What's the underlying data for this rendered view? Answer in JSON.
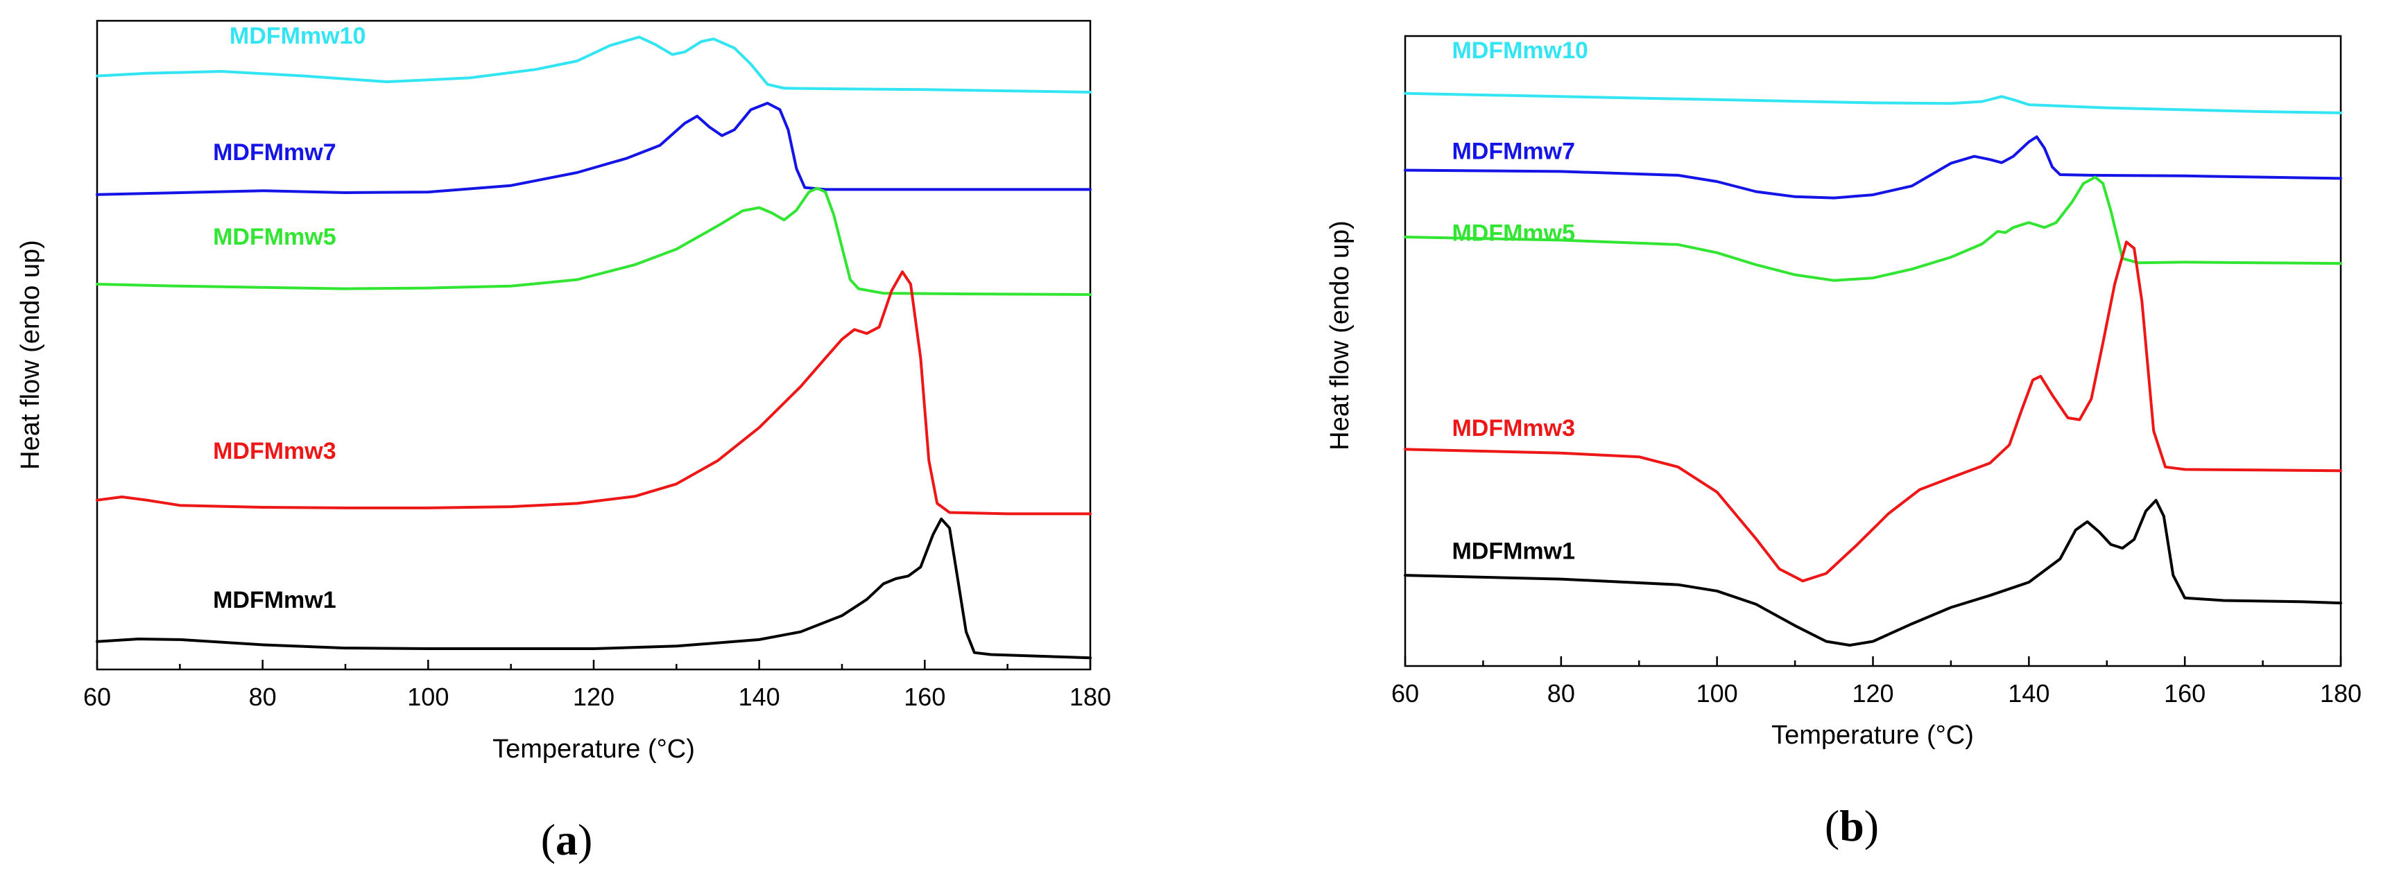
{
  "chart_data": [
    {
      "id": "a",
      "type": "line",
      "panel_label": {
        "open": "(",
        "letter": "a",
        "close": ")"
      },
      "xlabel": "Temperature (°C)",
      "ylabel": "Heat flow (endo up)",
      "xlim": [
        60,
        180
      ],
      "ylim": [
        0,
        100
      ],
      "xticks": [
        60,
        80,
        100,
        120,
        140,
        160,
        180
      ],
      "y_ticks_shown": false,
      "y_units": "arbitrary (stacked, offset)",
      "series": [
        {
          "name": "MDFMmw10",
          "color": "#33e5f2",
          "label_at": [
            76,
            96.5
          ],
          "points": [
            [
              60,
              91.5
            ],
            [
              66,
              91.9
            ],
            [
              75,
              92.2
            ],
            [
              85,
              91.5
            ],
            [
              95,
              90.6
            ],
            [
              105,
              91.2
            ],
            [
              113,
              92.5
            ],
            [
              118,
              93.8
            ],
            [
              122,
              96.2
            ],
            [
              125.5,
              97.5
            ],
            [
              127.5,
              96.3
            ],
            [
              129.5,
              94.8
            ],
            [
              131,
              95.2
            ],
            [
              133,
              96.8
            ],
            [
              134.5,
              97.2
            ],
            [
              137,
              95.8
            ],
            [
              139,
              93.3
            ],
            [
              141,
              90.2
            ],
            [
              143,
              89.6
            ],
            [
              150,
              89.5
            ],
            [
              160,
              89.4
            ],
            [
              170,
              89.2
            ],
            [
              180,
              89.0
            ]
          ]
        },
        {
          "name": "MDFMmw7",
          "color": "#1414e6",
          "label_at": [
            74,
            78.5
          ],
          "points": [
            [
              60,
              73.2
            ],
            [
              70,
              73.5
            ],
            [
              80,
              73.8
            ],
            [
              90,
              73.5
            ],
            [
              100,
              73.6
            ],
            [
              110,
              74.6
            ],
            [
              118,
              76.6
            ],
            [
              124,
              78.8
            ],
            [
              128,
              80.8
            ],
            [
              131,
              84.2
            ],
            [
              132.5,
              85.3
            ],
            [
              134,
              83.6
            ],
            [
              135.5,
              82.3
            ],
            [
              137,
              83.2
            ],
            [
              139,
              86.3
            ],
            [
              141,
              87.3
            ],
            [
              142.5,
              86.3
            ],
            [
              143.5,
              83.2
            ],
            [
              144.5,
              77.2
            ],
            [
              145.5,
              74.3
            ],
            [
              148,
              74.0
            ],
            [
              160,
              74.0
            ],
            [
              180,
              74.0
            ]
          ]
        },
        {
          "name": "MDFMmw5",
          "color": "#33e533",
          "label_at": [
            74,
            65.5
          ],
          "points": [
            [
              60,
              59.4
            ],
            [
              70,
              59.1
            ],
            [
              80,
              58.9
            ],
            [
              90,
              58.7
            ],
            [
              100,
              58.8
            ],
            [
              110,
              59.1
            ],
            [
              118,
              60.1
            ],
            [
              125,
              62.4
            ],
            [
              130,
              64.8
            ],
            [
              135,
              68.4
            ],
            [
              138,
              70.7
            ],
            [
              140,
              71.2
            ],
            [
              141.5,
              70.4
            ],
            [
              143,
              69.3
            ],
            [
              144.5,
              70.8
            ],
            [
              146,
              73.6
            ],
            [
              147,
              74.2
            ],
            [
              148,
              73.6
            ],
            [
              149,
              70.1
            ],
            [
              150,
              65.1
            ],
            [
              151,
              60.1
            ],
            [
              152,
              58.7
            ],
            [
              155,
              58.0
            ],
            [
              165,
              57.9
            ],
            [
              180,
              57.8
            ]
          ]
        },
        {
          "name": "MDFMmw3",
          "color": "#ee1717",
          "label_at": [
            74,
            32.5
          ],
          "points": [
            [
              60,
              26.1
            ],
            [
              63,
              26.6
            ],
            [
              66,
              26.1
            ],
            [
              70,
              25.3
            ],
            [
              80,
              25.0
            ],
            [
              90,
              24.9
            ],
            [
              100,
              24.9
            ],
            [
              110,
              25.1
            ],
            [
              118,
              25.6
            ],
            [
              125,
              26.7
            ],
            [
              130,
              28.6
            ],
            [
              135,
              32.2
            ],
            [
              140,
              37.3
            ],
            [
              145,
              43.6
            ],
            [
              148,
              48.0
            ],
            [
              150,
              50.9
            ],
            [
              151.5,
              52.4
            ],
            [
              153,
              51.8
            ],
            [
              154.5,
              52.8
            ],
            [
              156,
              58.4
            ],
            [
              157.3,
              61.3
            ],
            [
              158.3,
              59.4
            ],
            [
              159.5,
              48.0
            ],
            [
              160.5,
              32.2
            ],
            [
              161.5,
              25.6
            ],
            [
              163,
              24.2
            ],
            [
              170,
              24.0
            ],
            [
              180,
              24.0
            ]
          ]
        },
        {
          "name": "MDFMmw1",
          "color": "#000000",
          "label_at": [
            74,
            9.5
          ],
          "points": [
            [
              60,
              4.3
            ],
            [
              65,
              4.7
            ],
            [
              70,
              4.6
            ],
            [
              80,
              3.8
            ],
            [
              90,
              3.3
            ],
            [
              100,
              3.2
            ],
            [
              110,
              3.2
            ],
            [
              120,
              3.2
            ],
            [
              130,
              3.6
            ],
            [
              140,
              4.6
            ],
            [
              145,
              5.8
            ],
            [
              150,
              8.3
            ],
            [
              153,
              10.8
            ],
            [
              155,
              13.2
            ],
            [
              156.5,
              14.0
            ],
            [
              158,
              14.4
            ],
            [
              159.5,
              15.8
            ],
            [
              161,
              20.8
            ],
            [
              162,
              23.2
            ],
            [
              163,
              21.8
            ],
            [
              164,
              13.8
            ],
            [
              165,
              5.8
            ],
            [
              166,
              2.6
            ],
            [
              168,
              2.3
            ],
            [
              175,
              2.0
            ],
            [
              180,
              1.8
            ]
          ]
        }
      ]
    },
    {
      "id": "b",
      "type": "line",
      "panel_label": {
        "open": "(",
        "letter": "b",
        "close": ")"
      },
      "xlabel": "Temperature (°C)",
      "ylabel": "Heat flow (endo up)",
      "xlim": [
        60,
        180
      ],
      "ylim": [
        0,
        100
      ],
      "xticks": [
        60,
        80,
        100,
        120,
        140,
        160,
        180
      ],
      "y_ticks_shown": false,
      "y_units": "arbitrary (stacked, offset)",
      "series": [
        {
          "name": "MDFMmw10",
          "color": "#33e5f2",
          "label_at": [
            66,
            96.5
          ],
          "points": [
            [
              60,
              90.9
            ],
            [
              80,
              90.4
            ],
            [
              100,
              89.9
            ],
            [
              120,
              89.4
            ],
            [
              130,
              89.3
            ],
            [
              134,
              89.6
            ],
            [
              136.5,
              90.4
            ],
            [
              138,
              89.9
            ],
            [
              140,
              89.1
            ],
            [
              150,
              88.6
            ],
            [
              160,
              88.3
            ],
            [
              170,
              88.0
            ],
            [
              180,
              87.8
            ]
          ]
        },
        {
          "name": "MDFMmw7",
          "color": "#1414e6",
          "label_at": [
            66,
            80.5
          ],
          "points": [
            [
              60,
              78.7
            ],
            [
              80,
              78.5
            ],
            [
              95,
              77.9
            ],
            [
              100,
              76.9
            ],
            [
              105,
              75.3
            ],
            [
              110,
              74.5
            ],
            [
              115,
              74.3
            ],
            [
              120,
              74.8
            ],
            [
              125,
              76.2
            ],
            [
              130,
              79.8
            ],
            [
              133,
              80.9
            ],
            [
              135,
              80.4
            ],
            [
              136.5,
              79.9
            ],
            [
              138,
              80.9
            ],
            [
              140,
              83.2
            ],
            [
              141,
              84.0
            ],
            [
              142,
              82.2
            ],
            [
              143,
              79.2
            ],
            [
              144,
              78.0
            ],
            [
              148,
              77.9
            ],
            [
              160,
              77.8
            ],
            [
              170,
              77.6
            ],
            [
              180,
              77.4
            ]
          ]
        },
        {
          "name": "MDFMmw5",
          "color": "#33e533",
          "label_at": [
            66,
            67.5
          ],
          "points": [
            [
              60,
              68.1
            ],
            [
              80,
              67.6
            ],
            [
              95,
              66.9
            ],
            [
              100,
              65.6
            ],
            [
              105,
              63.7
            ],
            [
              110,
              62.1
            ],
            [
              115,
              61.2
            ],
            [
              120,
              61.6
            ],
            [
              125,
              63.0
            ],
            [
              130,
              64.9
            ],
            [
              134,
              67.0
            ],
            [
              136,
              69.0
            ],
            [
              137,
              68.8
            ],
            [
              138,
              69.6
            ],
            [
              140,
              70.4
            ],
            [
              142,
              69.6
            ],
            [
              143.5,
              70.4
            ],
            [
              145.5,
              73.6
            ],
            [
              147,
              76.6
            ],
            [
              148.5,
              77.6
            ],
            [
              149.5,
              76.6
            ],
            [
              150.5,
              72.3
            ],
            [
              152,
              64.7
            ],
            [
              154,
              64.0
            ],
            [
              160,
              64.1
            ],
            [
              170,
              64.0
            ],
            [
              180,
              63.9
            ]
          ]
        },
        {
          "name": "MDFMmw3",
          "color": "#ee1717",
          "label_at": [
            66,
            36.5
          ],
          "points": [
            [
              60,
              34.4
            ],
            [
              70,
              34.1
            ],
            [
              80,
              33.8
            ],
            [
              90,
              33.2
            ],
            [
              95,
              31.6
            ],
            [
              100,
              27.6
            ],
            [
              105,
              20.2
            ],
            [
              108,
              15.4
            ],
            [
              111,
              13.5
            ],
            [
              114,
              14.7
            ],
            [
              118,
              19.3
            ],
            [
              122,
              24.2
            ],
            [
              126,
              28.0
            ],
            [
              130,
              29.9
            ],
            [
              135,
              32.2
            ],
            [
              137.5,
              35.1
            ],
            [
              139,
              40.4
            ],
            [
              140.5,
              45.4
            ],
            [
              141.5,
              46.0
            ],
            [
              143,
              43.0
            ],
            [
              145,
              39.4
            ],
            [
              146.5,
              39.1
            ],
            [
              148,
              42.4
            ],
            [
              149.5,
              51.3
            ],
            [
              151,
              60.6
            ],
            [
              152.5,
              67.3
            ],
            [
              153.5,
              66.3
            ],
            [
              154.5,
              57.9
            ],
            [
              156,
              37.3
            ],
            [
              157.5,
              31.6
            ],
            [
              160,
              31.2
            ],
            [
              170,
              31.1
            ],
            [
              180,
              31.0
            ]
          ]
        },
        {
          "name": "MDFMmw1",
          "color": "#000000",
          "label_at": [
            66,
            17
          ],
          "points": [
            [
              60,
              14.4
            ],
            [
              80,
              13.8
            ],
            [
              95,
              12.9
            ],
            [
              100,
              11.9
            ],
            [
              105,
              9.8
            ],
            [
              110,
              6.4
            ],
            [
              114,
              3.9
            ],
            [
              117,
              3.3
            ],
            [
              120,
              3.9
            ],
            [
              125,
              6.7
            ],
            [
              130,
              9.3
            ],
            [
              135,
              11.2
            ],
            [
              140,
              13.3
            ],
            [
              144,
              17.0
            ],
            [
              146,
              21.6
            ],
            [
              147.5,
              22.9
            ],
            [
              149,
              21.3
            ],
            [
              150.5,
              19.3
            ],
            [
              152,
              18.7
            ],
            [
              153.5,
              20.1
            ],
            [
              155,
              24.6
            ],
            [
              156.3,
              26.3
            ],
            [
              157.3,
              23.8
            ],
            [
              158.5,
              14.4
            ],
            [
              160,
              10.8
            ],
            [
              165,
              10.4
            ],
            [
              175,
              10.2
            ],
            [
              180,
              10.0
            ]
          ]
        }
      ]
    }
  ]
}
